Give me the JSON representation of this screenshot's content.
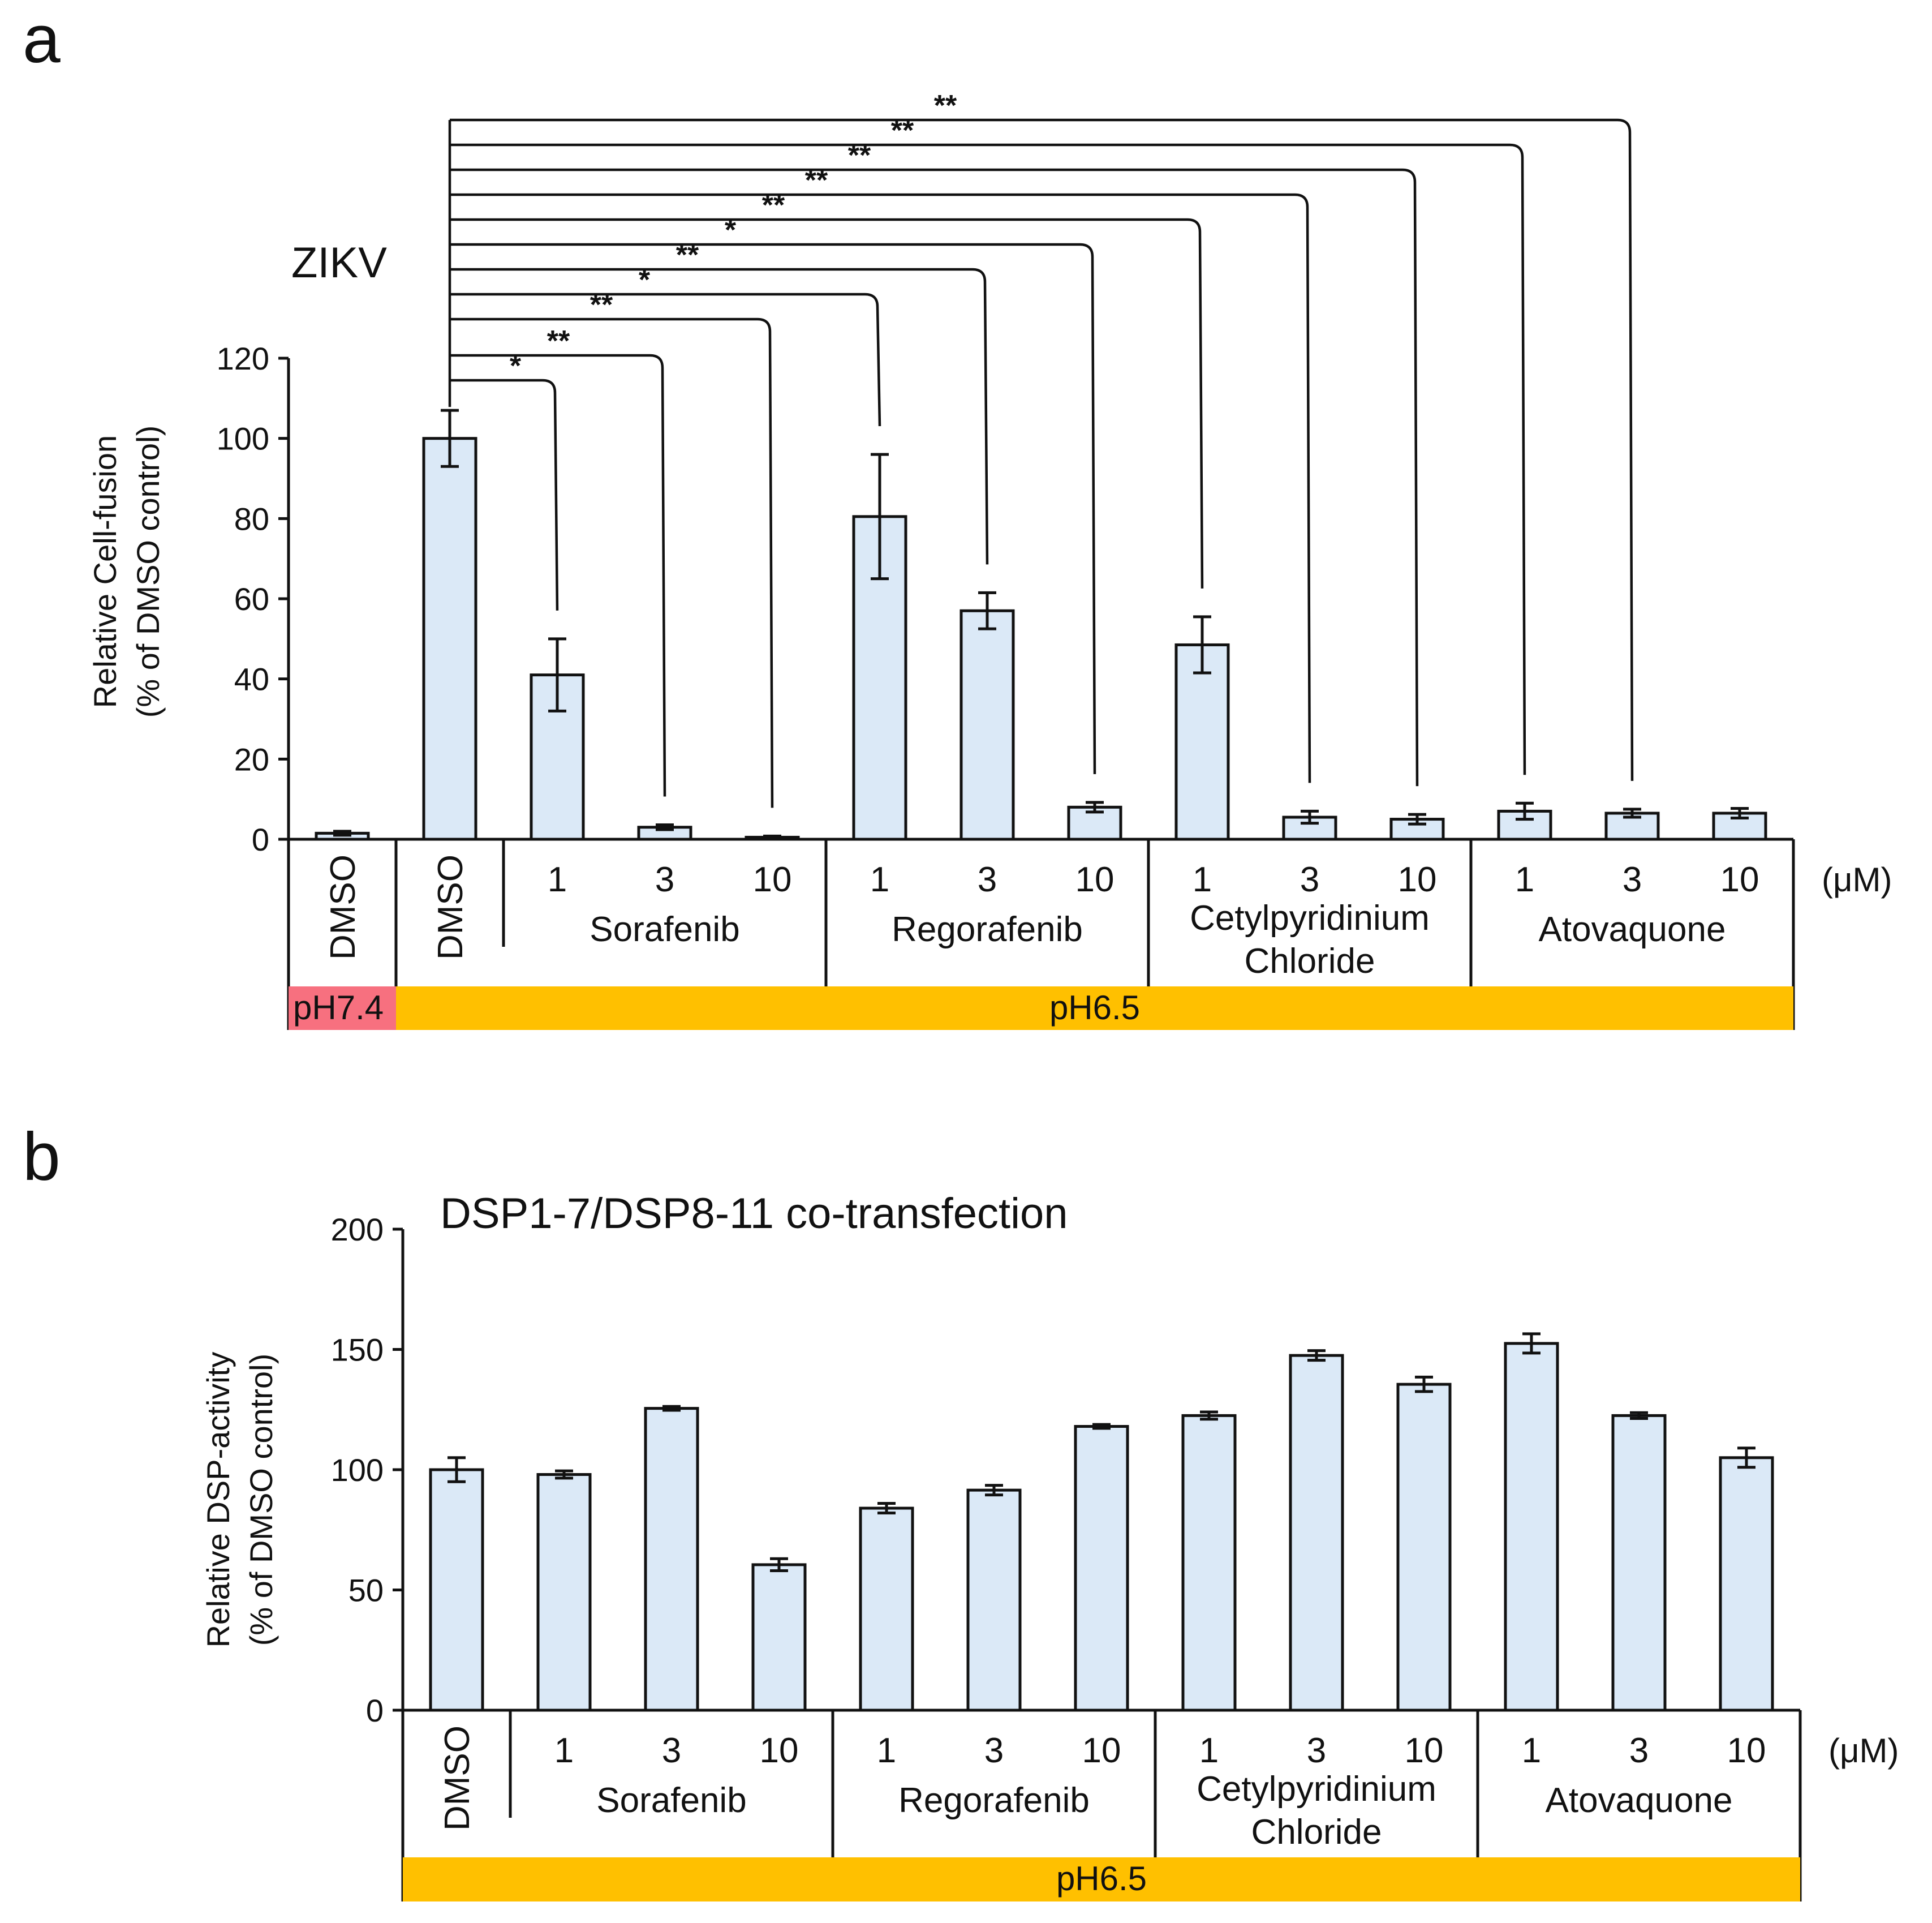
{
  "chart_data": [
    {
      "panel": "a",
      "type": "bar",
      "title": "ZIKV",
      "ylabel_line1": "Relative Cell-fusion",
      "ylabel_line2": "(% of DMSO control)",
      "ylim": [
        0,
        120
      ],
      "yticks": [
        "0",
        "20",
        "40",
        "60",
        "80",
        "100",
        "120"
      ],
      "unit": "(μM)",
      "categories": [
        "DMSO",
        "DMSO",
        "1",
        "3",
        "10",
        "1",
        "3",
        "10",
        "1",
        "3",
        "10",
        "1",
        "3",
        "10"
      ],
      "values": [
        1.5,
        100,
        41,
        3,
        0.5,
        80.5,
        57,
        8,
        48.5,
        5.5,
        5,
        7,
        6.5,
        6.5
      ],
      "errors": [
        0.5,
        7,
        9,
        0.6,
        0.3,
        15.5,
        4.5,
        1.2,
        7,
        1.5,
        1.2,
        2,
        1,
        1.2
      ],
      "groups": [
        {
          "label_lines": [
            "Sorafenib"
          ]
        },
        {
          "label_lines": [
            "Regorafenib"
          ]
        },
        {
          "label_lines": [
            "Cetylpyridinium",
            "Chloride"
          ]
        },
        {
          "label_lines": [
            "Atovaquone"
          ]
        }
      ],
      "ph_bands": [
        {
          "label": "pH7.4",
          "color": "#f7707f"
        },
        {
          "label": "pH6.5",
          "color": "#ffc000"
        }
      ],
      "significance": [
        {
          "label": "*"
        },
        {
          "label": "**"
        },
        {
          "label": "**"
        },
        {
          "label": "*"
        },
        {
          "label": "**"
        },
        {
          "label": "*"
        },
        {
          "label": "**"
        },
        {
          "label": "**"
        },
        {
          "label": "**"
        },
        {
          "label": "**"
        },
        {
          "label": "**"
        }
      ]
    },
    {
      "panel": "b",
      "type": "bar",
      "title": "DSP1-7/DSP8-11 co-transfection",
      "ylabel_line1": "Relative DSP-activity",
      "ylabel_line2": "(% of DMSO control)",
      "ylim": [
        0,
        200
      ],
      "yticks": [
        "0",
        "50",
        "100",
        "150",
        "200"
      ],
      "unit": "(μM)",
      "categories": [
        "DMSO",
        "1",
        "3",
        "10",
        "1",
        "3",
        "10",
        "1",
        "3",
        "10",
        "1",
        "3",
        "10"
      ],
      "values": [
        100,
        98,
        125.5,
        60.5,
        84,
        91.5,
        118,
        122.5,
        147.5,
        135.5,
        152.5,
        122.5,
        105
      ],
      "errors": [
        5,
        1.5,
        0.8,
        2.5,
        2,
        2,
        0.8,
        1.5,
        2,
        3,
        4,
        1.2,
        4
      ],
      "groups": [
        {
          "label_lines": [
            "Sorafenib"
          ]
        },
        {
          "label_lines": [
            "Regorafenib"
          ]
        },
        {
          "label_lines": [
            "Cetylpyridinium",
            "Chloride"
          ]
        },
        {
          "label_lines": [
            "Atovaquone"
          ]
        }
      ],
      "ph_bands": [
        {
          "label": "pH6.5",
          "color": "#ffc000"
        }
      ]
    }
  ],
  "style": {
    "bar_fill": "#dbe9f7",
    "bar_stroke": "#111111"
  }
}
